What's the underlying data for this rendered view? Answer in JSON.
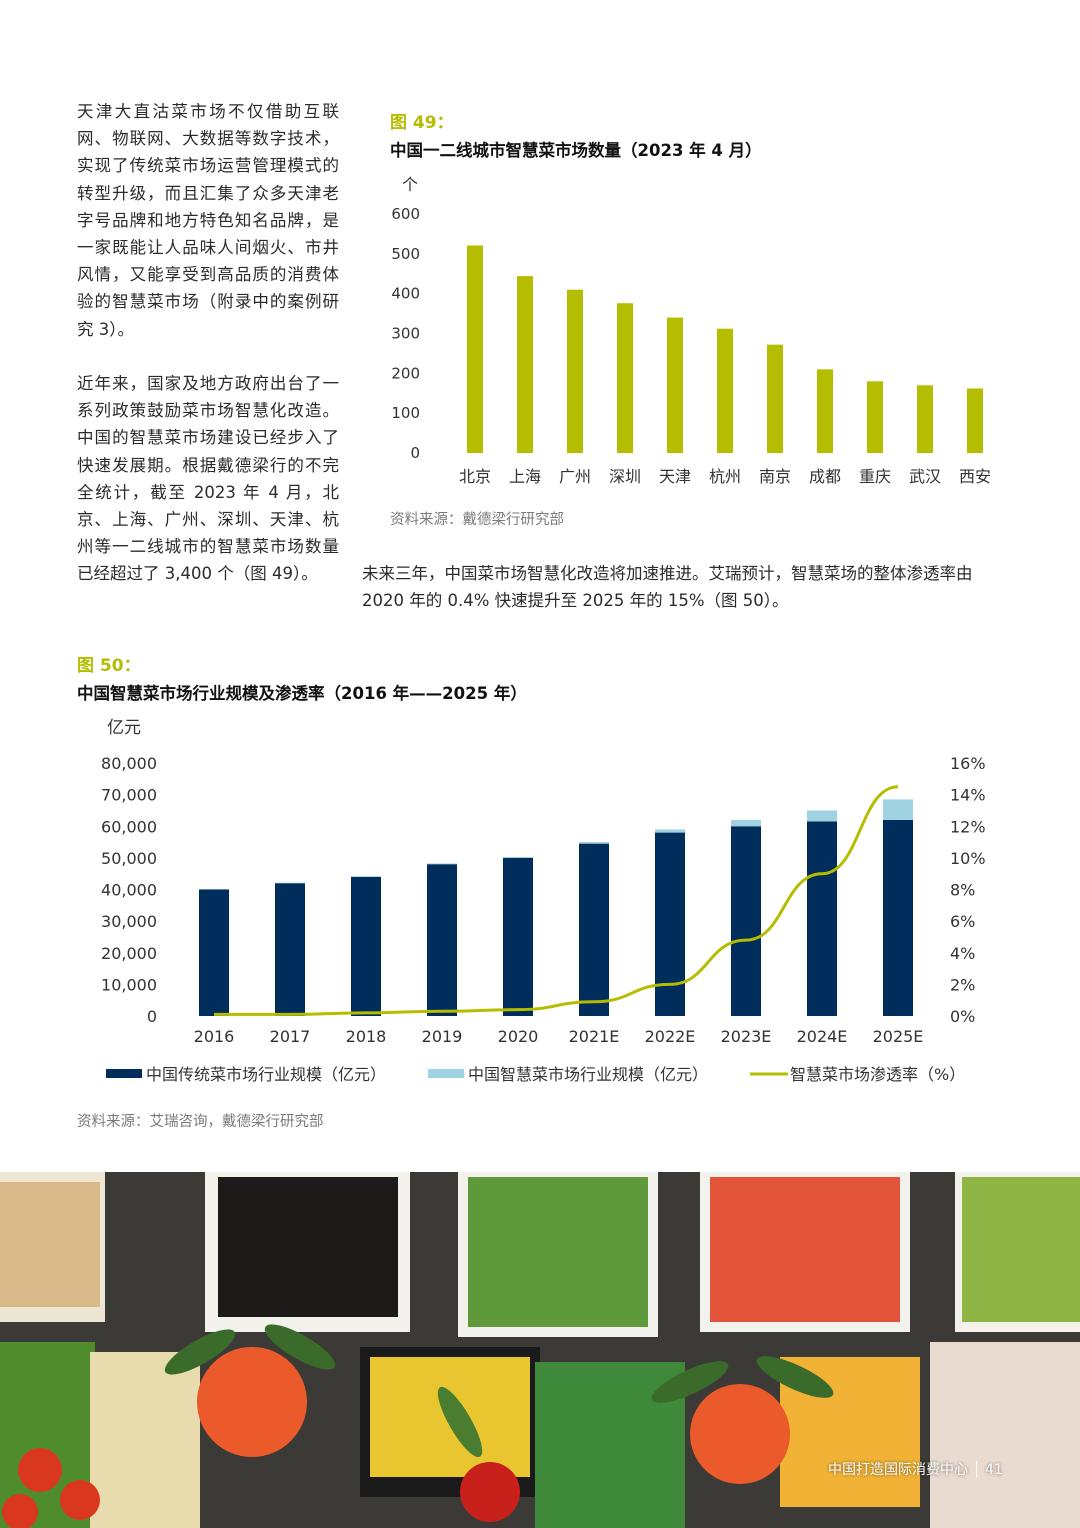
{
  "paragraphs": {
    "p1": "天津大直沽菜市场不仅借助互联网、物联网、大数据等数字技术，实现了传统菜市场运营管理模式的转型升级，而且汇集了众多天津老字号品牌和地方特色知名品牌，是一家既能让人品味人间烟火、市井风情，又能享受到高品质的消费体验的智慧菜市场（附录中的案例研究 3）。",
    "p2": "近年来，国家及地方政府出台了一系列政策鼓励菜市场智慧化改造。中国的智慧菜市场建设已经步入了快速发展期。根据戴德梁行的不完全统计，截至 2023 年 4 月，北京、上海、广州、深圳、天津、杭州等一二线城市的智慧菜市场数量已经超过了 3,400 个（图 49）。",
    "p3": "未来三年，中国菜市场智慧化改造将加速推进。艾瑞预计，智慧菜场的整体渗透率由 2020 年的 0.4% 快速提升至 2025 年的 15%（图 50）。"
  },
  "fig49": {
    "label": "图 49：",
    "title": "中国一二线城市智慧菜市场数量（2023 年 4 月）",
    "source": "资料来源：戴德梁行研究部"
  },
  "fig50": {
    "label": "图 50：",
    "title": "中国智慧菜市场行业规模及渗透率（2016 年——2025 年）",
    "source": "资料来源：艾瑞咨询，戴德梁行研究部"
  },
  "footer": {
    "text": "中国打造国际消费中心",
    "page": "41"
  },
  "photo": {
    "name": "salad-bar-photo"
  },
  "colors": {
    "accent": "#b5bd00",
    "navy": "#002d5c",
    "light_blue": "#9fd3e1",
    "line": "#b5bd00"
  },
  "chart_data": [
    {
      "type": "bar",
      "unit_label": "个",
      "categories": [
        "北京",
        "上海",
        "广州",
        "深圳",
        "天津",
        "杭州",
        "南京",
        "成都",
        "重庆",
        "武汉",
        "西安"
      ],
      "values": [
        521,
        444,
        410,
        376,
        340,
        312,
        272,
        210,
        180,
        170,
        162
      ],
      "ylim": [
        0,
        600
      ],
      "yticks": [
        0,
        100,
        200,
        300,
        400,
        500,
        600
      ],
      "grid": false,
      "color": "#b5bd00"
    },
    {
      "type": "bar+line",
      "unit_label": "亿元",
      "categories": [
        "2016",
        "2017",
        "2018",
        "2019",
        "2020",
        "2021E",
        "2022E",
        "2023E",
        "2024E",
        "2025E"
      ],
      "series": [
        {
          "name": "中国传统菜市场行业规模（亿元）",
          "kind": "stacked-bar",
          "color": "#002d5c",
          "values": [
            40000,
            42000,
            44000,
            48000,
            50000,
            54500,
            58000,
            60000,
            61500,
            62000
          ]
        },
        {
          "name": "中国智慧菜市场行业规模（亿元）",
          "kind": "stacked-bar",
          "color": "#9fd3e1",
          "values": [
            100,
            150,
            200,
            250,
            300,
            500,
            1000,
            2000,
            3500,
            6500
          ]
        },
        {
          "name": "智慧菜市场渗透率（%）",
          "kind": "line",
          "axis": "right",
          "color": "#b5bd00",
          "values": [
            0.1,
            0.1,
            0.2,
            0.3,
            0.4,
            0.9,
            2.0,
            4.8,
            9.0,
            14.5
          ]
        }
      ],
      "ylim_left": [
        0,
        80000
      ],
      "yticks_left": [
        "0",
        "10,000",
        "20,000",
        "30,000",
        "40,000",
        "50,000",
        "60,000",
        "70,000",
        "80,000"
      ],
      "ylim_right": [
        0,
        16
      ],
      "yticks_right": [
        "0%",
        "2%",
        "4%",
        "6%",
        "8%",
        "10%",
        "12%",
        "14%",
        "16%"
      ],
      "legend": "bottom",
      "grid": false
    }
  ]
}
